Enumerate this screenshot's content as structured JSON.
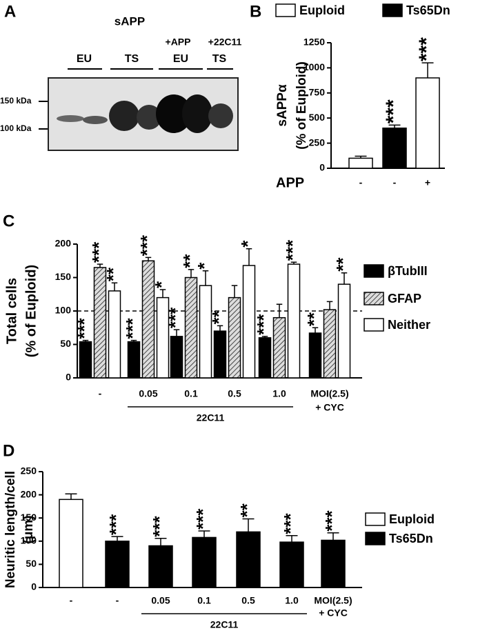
{
  "blot": {
    "panel": "A",
    "title": "sAPP",
    "lanes": [
      {
        "label": "EU"
      },
      {
        "label": "TS"
      },
      {
        "treatment": "+APP",
        "label": "EU"
      },
      {
        "treatment": "+22C11",
        "label": "TS"
      }
    ],
    "markers": [
      "150 kDa",
      "100 kDa"
    ]
  },
  "chart_data": [
    {
      "type": "bar",
      "panel": "B",
      "categories": [
        "-",
        "-",
        "+"
      ],
      "xlabel": "APP",
      "ylabel": [
        "sAPPα",
        "(% of Euploid)"
      ],
      "ylim": [
        0,
        1250
      ],
      "yticks": [
        0,
        250,
        500,
        750,
        1000,
        1250
      ],
      "series": [
        {
          "name": "Euploid",
          "color": "#ffffff",
          "values": [
            100,
            null,
            900
          ],
          "errors": [
            20,
            null,
            150
          ],
          "significance": [
            null,
            null,
            "***"
          ]
        },
        {
          "name": "Ts65Dn",
          "color": "#000000",
          "values": [
            null,
            400,
            null
          ],
          "errors": [
            null,
            30,
            null
          ],
          "significance": [
            null,
            "***",
            null
          ]
        }
      ]
    },
    {
      "type": "bar",
      "panel": "C",
      "categories": [
        "-",
        "0.05",
        "0.1",
        "0.5",
        "1.0",
        "MOI(2.5)"
      ],
      "category_notes": [
        null,
        null,
        null,
        null,
        null,
        "+ CYC"
      ],
      "group_label": "22C11",
      "ylabel": [
        "Total cells",
        "(% of Euploid)"
      ],
      "ylim": [
        0,
        200
      ],
      "yticks": [
        0,
        50,
        100,
        150,
        200
      ],
      "reference_line": 100,
      "series": [
        {
          "name": "βTubIII",
          "color": "#000000",
          "values": [
            54,
            54,
            62,
            70,
            60,
            67
          ],
          "errors": [
            2,
            2,
            10,
            8,
            2,
            8
          ],
          "significance": [
            "***",
            "***",
            "***",
            "**",
            "***",
            "**"
          ]
        },
        {
          "name": "GFAP",
          "color": "#aaaaaa",
          "hatch": true,
          "values": [
            165,
            175,
            150,
            120,
            90,
            102
          ],
          "errors": [
            5,
            5,
            12,
            18,
            20,
            12
          ],
          "significance": [
            "***",
            "***",
            "**",
            null,
            null,
            null
          ]
        },
        {
          "name": "Neither",
          "color": "#ffffff",
          "values": [
            130,
            120,
            138,
            168,
            170,
            140
          ],
          "errors": [
            12,
            12,
            22,
            25,
            3,
            17
          ],
          "significance": [
            "**",
            "*",
            "*",
            "*",
            "***",
            "**"
          ]
        }
      ]
    },
    {
      "type": "bar",
      "panel": "D",
      "categories": [
        "-",
        "-",
        "0.05",
        "0.1",
        "0.5",
        "1.0",
        "MOI(2.5)"
      ],
      "category_notes": [
        null,
        null,
        null,
        null,
        null,
        null,
        "+ CYC"
      ],
      "group_label": "22C11",
      "ylabel": [
        "Neuritic length/cell",
        "(μm)"
      ],
      "ylim": [
        0,
        250
      ],
      "yticks": [
        0,
        50,
        100,
        150,
        200,
        250
      ],
      "series": [
        {
          "name": "Euploid",
          "color": "#ffffff",
          "values": [
            190,
            null,
            null,
            null,
            null,
            null,
            null
          ],
          "errors": [
            12,
            null,
            null,
            null,
            null,
            null,
            null
          ],
          "significance": [
            null,
            null,
            null,
            null,
            null,
            null,
            null
          ]
        },
        {
          "name": "Ts65Dn",
          "color": "#000000",
          "values": [
            null,
            100,
            90,
            108,
            120,
            98,
            102
          ],
          "errors": [
            null,
            10,
            16,
            14,
            28,
            14,
            16
          ],
          "significance": [
            null,
            "***",
            "***",
            "***",
            "**",
            "***",
            "***"
          ]
        }
      ]
    }
  ]
}
